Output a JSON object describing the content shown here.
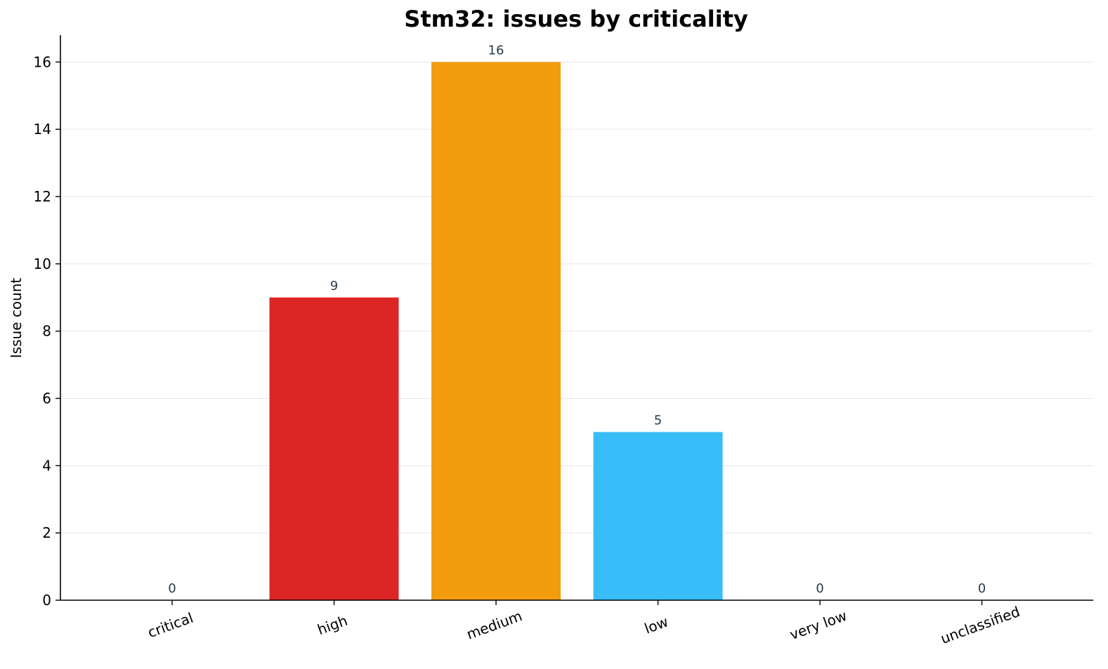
{
  "chart_data": {
    "type": "bar",
    "title": "Stm32: issues by criticality",
    "xlabel": "",
    "ylabel": "Issue count",
    "categories": [
      "critical",
      "high",
      "medium",
      "low",
      "very low",
      "unclassified"
    ],
    "values": [
      0,
      9,
      16,
      5,
      0,
      0
    ],
    "colors": [
      "#dc2626",
      "#dc2626",
      "#f39c0e",
      "#38bdf8",
      "#38bdf8",
      "#9ca3af"
    ],
    "ylim": [
      0,
      16.8
    ],
    "yticks": [
      0,
      2,
      4,
      6,
      8,
      10,
      12,
      14,
      16
    ],
    "grid": "y-major",
    "legend": "none",
    "data_labels": [
      "0",
      "9",
      "16",
      "5",
      "0",
      "0"
    ]
  }
}
